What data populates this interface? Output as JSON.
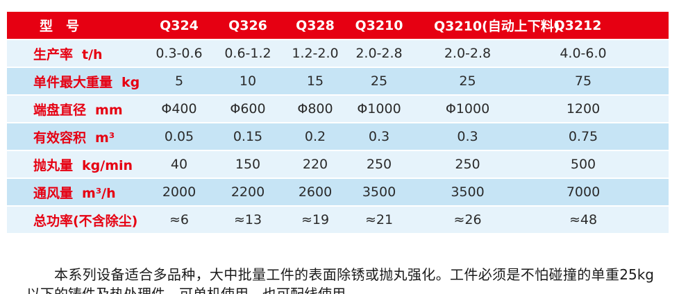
{
  "colors": {
    "header_bg": "#E60012",
    "row_light": "#E6F3FB",
    "row_dark": "#C6E4F5",
    "label_red": "#E60012",
    "value_text": "#2A2A2A"
  },
  "table": {
    "header": {
      "label": "型　号",
      "models": [
        "Q324",
        "Q326",
        "Q328",
        "Q3210",
        "Q3210(自动上下料)",
        "Q3212"
      ]
    },
    "rows": [
      {
        "label": "生产率",
        "unit": "t/h",
        "values": [
          "0.3-0.6",
          "0.6-1.2",
          "1.2-2.0",
          "2.0-2.8",
          "2.0-2.8",
          "4.0-6.0"
        ]
      },
      {
        "label": "单件最大重量",
        "unit": "kg",
        "values": [
          "5",
          "10",
          "15",
          "25",
          "25",
          "75"
        ]
      },
      {
        "label": "端盘直径",
        "unit": "mm",
        "values": [
          "Φ400",
          "Φ600",
          "Φ800",
          "Φ1000",
          "Φ1000",
          "1200"
        ]
      },
      {
        "label": "有效容积",
        "unit": "m³",
        "values": [
          "0.05",
          "0.15",
          "0.2",
          "0.3",
          "0.3",
          "0.75"
        ]
      },
      {
        "label": "抛丸量",
        "unit": "kg/min",
        "values": [
          "40",
          "150",
          "220",
          "250",
          "250",
          "500"
        ]
      },
      {
        "label": "通风量",
        "unit": "m³/h",
        "values": [
          "2000",
          "2200",
          "2600",
          "3500",
          "3500",
          "7000"
        ]
      },
      {
        "label": "总功率(不含除尘)",
        "unit": "",
        "values": [
          "≈6",
          "≈13",
          "≈19",
          "≈21",
          "≈26",
          "≈48"
        ]
      }
    ]
  },
  "description": "本系列设备适合多品种，大中批量工件的表面除锈或抛丸强化。工件必须是不怕碰撞的单重25kg以下的铸件及热处理件。可单机使用，也可配线使用。"
}
